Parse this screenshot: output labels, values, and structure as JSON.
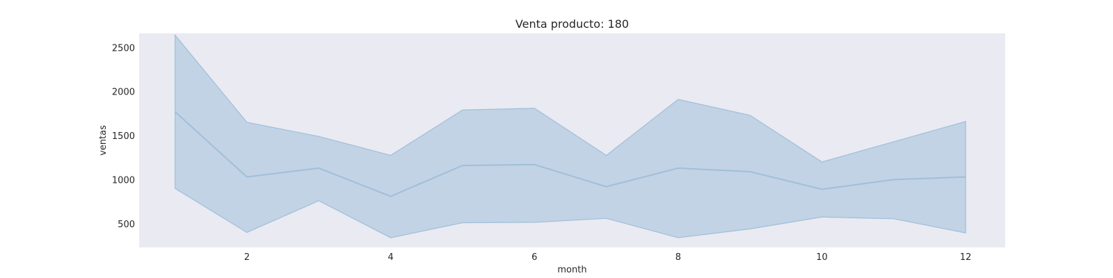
{
  "chart_data": {
    "type": "line",
    "title": "Venta producto: 180",
    "xlabel": "month",
    "ylabel": "ventas",
    "xlim": [
      0.5,
      12.55
    ],
    "ylim": [
      230,
      2660
    ],
    "xticks": [
      2,
      4,
      6,
      8,
      10,
      12
    ],
    "yticks": [
      500,
      1000,
      1500,
      2000,
      2500
    ],
    "grid": false,
    "series": [
      {
        "x": [
          1,
          2,
          3,
          4,
          5,
          6,
          7,
          8,
          9,
          10,
          11,
          12
        ],
        "values": [
          1770,
          1030,
          1130,
          810,
          1160,
          1170,
          920,
          1130,
          1090,
          890,
          1000,
          1030
        ],
        "lower": [
          900,
          400,
          760,
          340,
          510,
          515,
          560,
          340,
          440,
          575,
          555,
          395
        ],
        "upper": [
          2640,
          1650,
          1490,
          1275,
          1790,
          1810,
          1275,
          1910,
          1730,
          1200,
          1430,
          1660
        ]
      }
    ],
    "colors": {
      "line": "#9fbfd9",
      "band": "#c2d3e5",
      "plot_background": "#eaeaf2"
    }
  }
}
